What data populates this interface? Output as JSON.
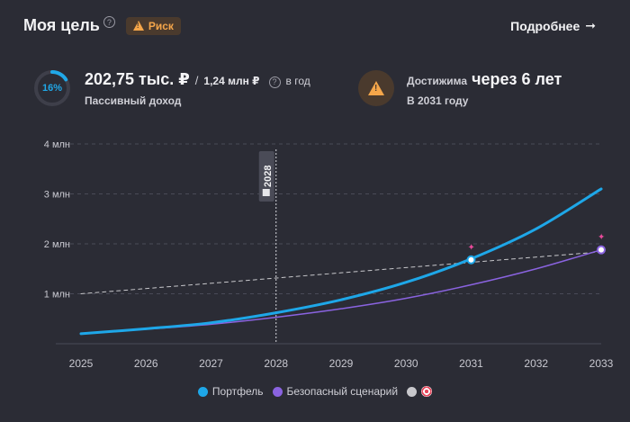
{
  "header": {
    "title": "Моя цель",
    "risk_label": "Риск",
    "more_label": "Подробнее"
  },
  "progress": {
    "percent_text": "16%",
    "fraction": 0.16,
    "color": "#20a8e8"
  },
  "income": {
    "current": "202,75 тыс. ₽",
    "separator": "/",
    "target": "1,24 млн ₽",
    "period": "в год",
    "label": "Пассивный доход"
  },
  "reach": {
    "prefix": "Достижима",
    "main": "через 6 лет",
    "sub": "В 2031 году"
  },
  "legend": {
    "portfolio": "Портфель",
    "safe": "Безопасный сценарий"
  },
  "colors": {
    "portfolio": "#1ea7e8",
    "safe": "#8a63e0",
    "target": "#c8c8cc",
    "accent_warning": "#f5a64a"
  },
  "chart_data": {
    "type": "line",
    "x_ticks": [
      "2025",
      "2026",
      "2027",
      "2028",
      "2029",
      "2030",
      "2031",
      "2032",
      "2033"
    ],
    "y_ticks": [
      "1 млн",
      "2 млн",
      "3 млн",
      "4 млн"
    ],
    "ylim": [
      0,
      4000000
    ],
    "xlim": [
      2025,
      2033
    ],
    "marker_label": "2028",
    "marker_x": 2028,
    "grid": true,
    "series": [
      {
        "name": "Портфель",
        "x": [
          2025,
          2026,
          2027,
          2028,
          2029,
          2030,
          2031,
          2032,
          2033
        ],
        "y": [
          200000,
          300000,
          420000,
          620000,
          880000,
          1230000,
          1700000,
          2300000,
          3100000
        ]
      },
      {
        "name": "Безопасный сценарий",
        "x": [
          2025,
          2026,
          2027,
          2028,
          2029,
          2030,
          2031,
          2032,
          2033
        ],
        "y": [
          200000,
          290000,
          390000,
          530000,
          700000,
          910000,
          1180000,
          1500000,
          1880000
        ]
      },
      {
        "x": [
          2025,
          2033
        ],
        "y": [
          1000000,
          1840000
        ]
      }
    ],
    "points": [
      {
        "series": "Портфель",
        "x": 2031,
        "y": 1680000
      },
      {
        "series": "Безопасный сценарий",
        "x": 2033,
        "y": 1880000
      }
    ]
  }
}
